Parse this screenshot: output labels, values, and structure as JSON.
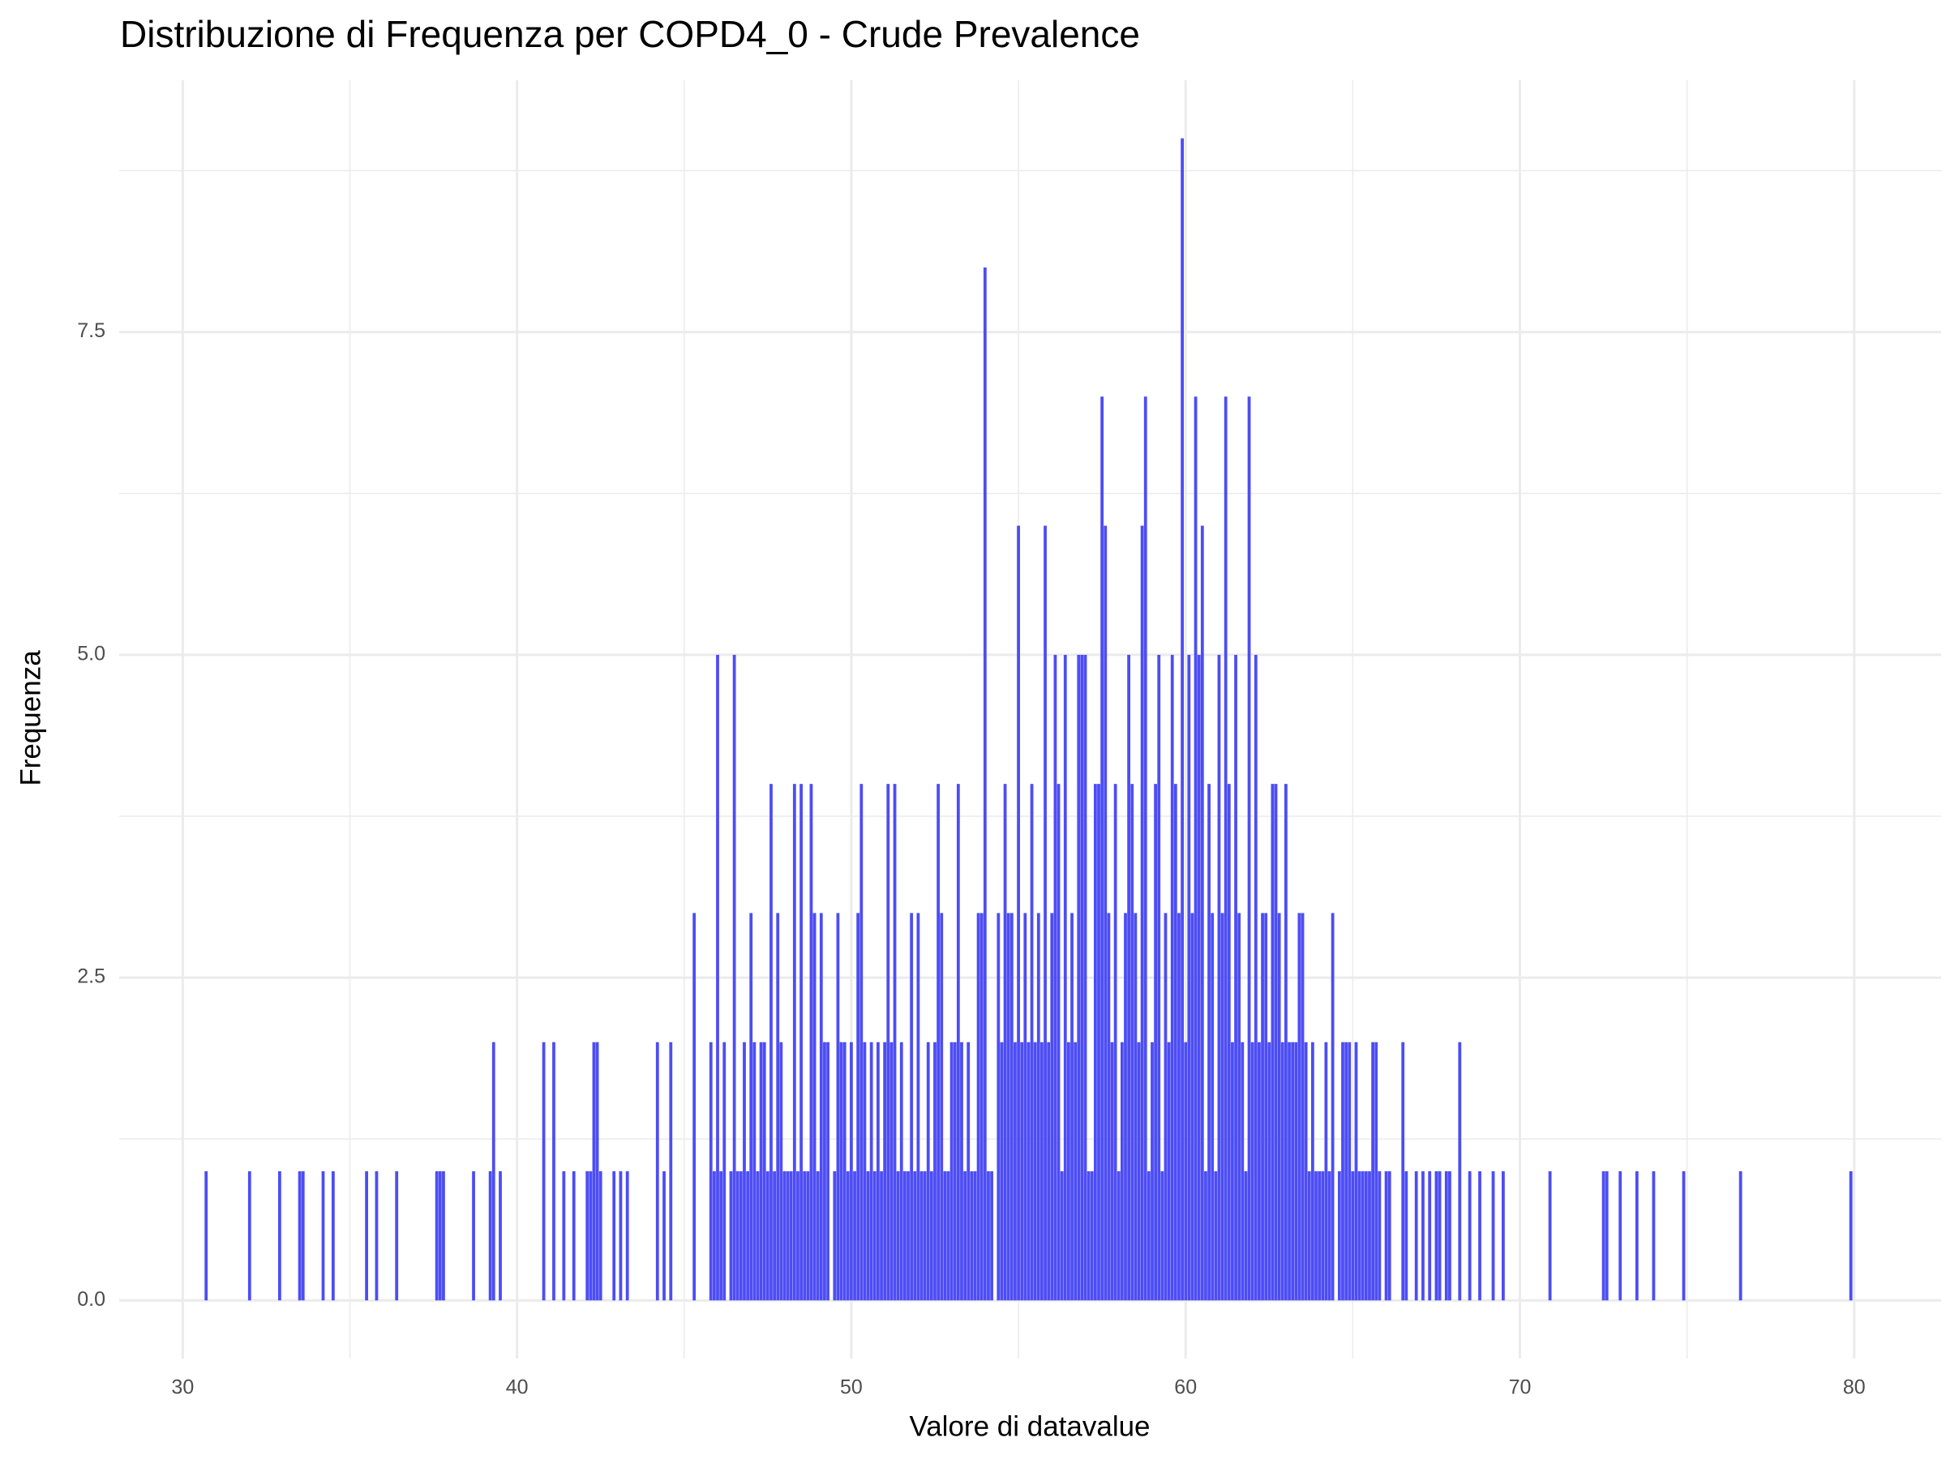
{
  "chart_data": {
    "type": "bar",
    "title": "Distribuzione di Frequenza per COPD4_0 - Crude Prevalence",
    "x_label": "Valore di datavalue",
    "y_label": "Frequenza",
    "color": "#4d4df5",
    "x": [
      30.7,
      32.0,
      32.9,
      33.5,
      33.6,
      34.2,
      34.5,
      35.5,
      35.8,
      36.4,
      37.6,
      37.7,
      37.8,
      38.7,
      39.2,
      39.3,
      39.5,
      40.8,
      41.1,
      41.4,
      41.7,
      42.1,
      42.2,
      42.3,
      42.4,
      42.5,
      42.9,
      43.1,
      43.3,
      44.2,
      44.4,
      44.6,
      45.3,
      45.8,
      45.9,
      46.0,
      46.1,
      46.2,
      46.4,
      46.5,
      46.6,
      46.7,
      46.8,
      46.9,
      47.0,
      47.1,
      47.2,
      47.3,
      47.4,
      47.5,
      47.6,
      47.7,
      47.8,
      47.9,
      48.0,
      48.1,
      48.2,
      48.3,
      48.4,
      48.5,
      48.6,
      48.7,
      48.8,
      48.9,
      49.0,
      49.1,
      49.2,
      49.3,
      49.5,
      49.6,
      49.7,
      49.8,
      49.9,
      50.0,
      50.1,
      50.2,
      50.3,
      50.4,
      50.5,
      50.6,
      50.7,
      50.8,
      50.9,
      51.0,
      51.1,
      51.2,
      51.3,
      51.4,
      51.5,
      51.6,
      51.7,
      51.8,
      51.9,
      52.0,
      52.1,
      52.2,
      52.3,
      52.4,
      52.5,
      52.6,
      52.7,
      52.8,
      52.9,
      53.0,
      53.1,
      53.2,
      53.3,
      53.4,
      53.5,
      53.6,
      53.7,
      53.8,
      53.9,
      54.0,
      54.1,
      54.2,
      54.4,
      54.5,
      54.6,
      54.7,
      54.8,
      54.9,
      55.0,
      55.1,
      55.2,
      55.3,
      55.4,
      55.5,
      55.6,
      55.7,
      55.8,
      55.9,
      56.0,
      56.1,
      56.2,
      56.3,
      56.4,
      56.5,
      56.6,
      56.7,
      56.8,
      56.9,
      57.0,
      57.1,
      57.2,
      57.3,
      57.4,
      57.5,
      57.6,
      57.7,
      57.8,
      57.9,
      58.0,
      58.1,
      58.2,
      58.3,
      58.4,
      58.5,
      58.6,
      58.7,
      58.8,
      58.9,
      59.0,
      59.1,
      59.2,
      59.3,
      59.4,
      59.5,
      59.6,
      59.7,
      59.8,
      59.9,
      60.0,
      60.1,
      60.2,
      60.3,
      60.4,
      60.5,
      60.6,
      60.7,
      60.8,
      60.9,
      61.0,
      61.1,
      61.2,
      61.3,
      61.4,
      61.5,
      61.6,
      61.7,
      61.8,
      61.9,
      62.0,
      62.1,
      62.2,
      62.3,
      62.4,
      62.5,
      62.6,
      62.7,
      62.8,
      62.9,
      63.0,
      63.1,
      63.2,
      63.3,
      63.4,
      63.5,
      63.6,
      63.7,
      63.8,
      63.9,
      64.0,
      64.1,
      64.2,
      64.3,
      64.4,
      64.6,
      64.7,
      64.8,
      64.9,
      65.0,
      65.1,
      65.2,
      65.3,
      65.4,
      65.5,
      65.6,
      65.7,
      65.8,
      66.0,
      66.1,
      66.5,
      66.6,
      66.9,
      67.1,
      67.3,
      67.5,
      67.6,
      67.8,
      67.9,
      68.2,
      68.5,
      68.8,
      69.2,
      69.5,
      70.9,
      72.5,
      72.6,
      73.0,
      73.5,
      74.0,
      74.9,
      76.6,
      79.9
    ],
    "values": [
      1,
      1,
      1,
      1,
      1,
      1,
      1,
      1,
      1,
      1,
      1,
      1,
      1,
      1,
      1,
      2,
      1,
      2,
      2,
      1,
      1,
      1,
      1,
      2,
      2,
      1,
      1,
      1,
      1,
      2,
      1,
      2,
      3,
      2,
      1,
      5,
      1,
      2,
      1,
      5,
      1,
      1,
      2,
      1,
      3,
      2,
      1,
      2,
      2,
      1,
      4,
      1,
      3,
      2,
      1,
      1,
      1,
      4,
      1,
      4,
      1,
      1,
      4,
      3,
      1,
      3,
      2,
      2,
      1,
      3,
      2,
      2,
      1,
      2,
      1,
      3,
      4,
      2,
      1,
      2,
      1,
      2,
      1,
      2,
      4,
      2,
      4,
      1,
      2,
      1,
      1,
      3,
      1,
      3,
      1,
      1,
      2,
      1,
      2,
      4,
      3,
      1,
      1,
      2,
      2,
      4,
      2,
      1,
      2,
      1,
      1,
      3,
      3,
      8,
      1,
      1,
      3,
      2,
      4,
      3,
      3,
      2,
      6,
      2,
      3,
      2,
      4,
      2,
      3,
      2,
      6,
      2,
      3,
      5,
      4,
      1,
      5,
      2,
      3,
      2,
      5,
      5,
      5,
      1,
      1,
      4,
      4,
      7,
      6,
      3,
      2,
      4,
      1,
      2,
      3,
      5,
      4,
      3,
      2,
      6,
      7,
      1,
      2,
      4,
      5,
      1,
      3,
      2,
      5,
      4,
      3,
      9,
      2,
      5,
      3,
      7,
      5,
      6,
      1,
      4,
      3,
      1,
      5,
      3,
      7,
      4,
      2,
      5,
      3,
      2,
      1,
      7,
      2,
      5,
      2,
      3,
      3,
      2,
      4,
      4,
      3,
      2,
      4,
      2,
      2,
      2,
      3,
      3,
      2,
      1,
      2,
      1,
      1,
      1,
      2,
      1,
      3,
      1,
      2,
      2,
      2,
      1,
      2,
      1,
      1,
      1,
      1,
      2,
      2,
      1,
      1,
      1,
      2,
      1,
      1,
      1,
      1,
      1,
      1,
      1,
      1,
      2,
      1,
      1,
      1,
      1,
      1,
      1,
      1,
      1,
      1,
      1,
      1,
      1,
      1
    ],
    "xlim": [
      28.1,
      82.6
    ],
    "xticks": [
      30,
      40,
      50,
      60,
      70,
      80
    ],
    "x_minor_ticks": [
      35,
      45,
      55,
      65,
      75
    ],
    "ylim": [
      -0.45,
      9.45
    ],
    "yticks": [
      {
        "value": 0,
        "label": "0.0"
      },
      2.5,
      {
        "value": 5,
        "label": "5.0"
      },
      7.5
    ],
    "y_minor_ticks": [
      1.25,
      3.75,
      6.25,
      8.75
    ],
    "grid": true
  }
}
